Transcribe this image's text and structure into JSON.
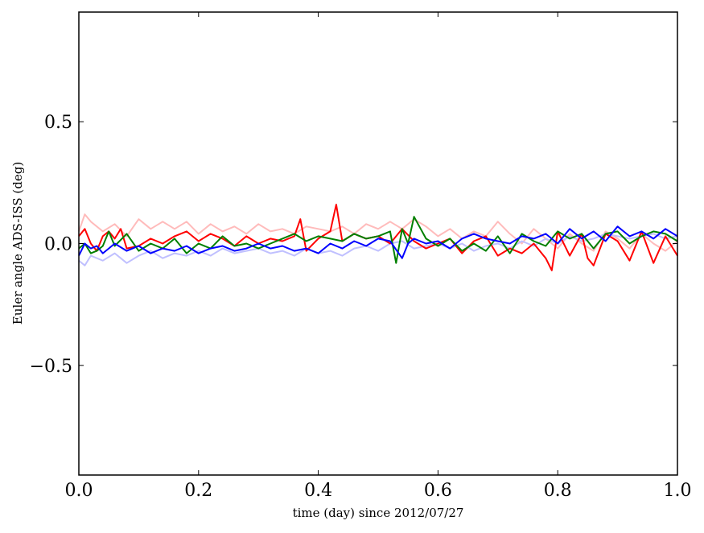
{
  "chart_data": {
    "type": "line",
    "title": "",
    "xlabel": "time (day) since 2012/07/27",
    "ylabel": "Euler angle ADS-ISS (deg)",
    "xlim": [
      0.0,
      1.0
    ],
    "ylim": [
      -0.95,
      0.95
    ],
    "xticks": [
      {
        "value": 0.0,
        "label": "0.0"
      },
      {
        "value": 0.2,
        "label": "0.2"
      },
      {
        "value": 0.4,
        "label": "0.4"
      },
      {
        "value": 0.6,
        "label": "0.6"
      },
      {
        "value": 0.8,
        "label": "0.8"
      },
      {
        "value": 1.0,
        "label": "1.0"
      }
    ],
    "yticks": [
      {
        "value": 0.5,
        "label": "0.5"
      },
      {
        "value": 0.0,
        "label": "0.0"
      },
      {
        "value": -0.5,
        "label": "−0.5"
      }
    ],
    "grid": false,
    "legend": "none",
    "series": [
      {
        "name": "pink",
        "color": "#ffbbbb",
        "x": [
          0.0,
          0.01,
          0.02,
          0.04,
          0.06,
          0.08,
          0.1,
          0.12,
          0.14,
          0.16,
          0.18,
          0.2,
          0.22,
          0.24,
          0.26,
          0.28,
          0.3,
          0.32,
          0.34,
          0.36,
          0.38,
          0.4,
          0.42,
          0.44,
          0.46,
          0.48,
          0.5,
          0.52,
          0.54,
          0.56,
          0.58,
          0.6,
          0.62,
          0.64,
          0.66,
          0.68,
          0.7,
          0.72,
          0.74,
          0.76,
          0.78,
          0.8,
          0.82,
          0.84,
          0.86,
          0.88,
          0.9,
          0.92,
          0.94,
          0.96,
          0.98,
          1.0
        ],
        "values": [
          0.05,
          0.12,
          0.09,
          0.05,
          0.08,
          0.03,
          0.1,
          0.06,
          0.09,
          0.06,
          0.09,
          0.04,
          0.08,
          0.05,
          0.07,
          0.04,
          0.08,
          0.05,
          0.06,
          0.04,
          0.07,
          0.06,
          0.05,
          0.07,
          0.04,
          0.08,
          0.06,
          0.09,
          0.06,
          0.1,
          0.07,
          0.03,
          0.06,
          0.02,
          0.05,
          0.03,
          0.09,
          0.04,
          0.0,
          0.06,
          0.02,
          -0.02,
          0.04,
          0.0,
          -0.03,
          0.05,
          0.02,
          -0.02,
          0.04,
          0.0,
          -0.03,
          0.01
        ]
      },
      {
        "name": "lightblue",
        "color": "#c0c0ff",
        "x": [
          0.0,
          0.01,
          0.02,
          0.04,
          0.06,
          0.08,
          0.1,
          0.12,
          0.14,
          0.16,
          0.18,
          0.2,
          0.22,
          0.24,
          0.26,
          0.28,
          0.3,
          0.32,
          0.34,
          0.36,
          0.38,
          0.4,
          0.42,
          0.44,
          0.46,
          0.48,
          0.5,
          0.52,
          0.54,
          0.56,
          0.58,
          0.6,
          0.62,
          0.64,
          0.66,
          0.68,
          0.7,
          0.72,
          0.74,
          0.76,
          0.78,
          0.8,
          0.82,
          0.84,
          0.86,
          0.88,
          0.9,
          0.92,
          0.94,
          0.96,
          0.98,
          1.0
        ],
        "values": [
          -0.07,
          -0.09,
          -0.05,
          -0.07,
          -0.04,
          -0.08,
          -0.05,
          -0.03,
          -0.06,
          -0.04,
          -0.05,
          -0.03,
          -0.05,
          -0.02,
          -0.04,
          -0.03,
          -0.02,
          -0.04,
          -0.03,
          -0.05,
          -0.02,
          -0.04,
          -0.03,
          -0.05,
          -0.02,
          -0.01,
          -0.03,
          0.0,
          0.01,
          -0.02,
          -0.01,
          0.0,
          -0.02,
          0.0,
          -0.03,
          -0.01,
          0.0,
          -0.02,
          0.01,
          -0.01,
          0.02,
          0.0,
          0.03,
          0.01,
          0.02,
          0.04,
          0.03,
          0.02,
          0.03,
          0.04,
          0.02,
          0.03
        ]
      },
      {
        "name": "red",
        "color": "#ff0000",
        "x": [
          0.0,
          0.01,
          0.02,
          0.03,
          0.04,
          0.05,
          0.06,
          0.07,
          0.08,
          0.1,
          0.12,
          0.14,
          0.16,
          0.18,
          0.2,
          0.22,
          0.24,
          0.26,
          0.28,
          0.3,
          0.32,
          0.34,
          0.36,
          0.37,
          0.38,
          0.4,
          0.42,
          0.43,
          0.44,
          0.46,
          0.48,
          0.5,
          0.52,
          0.54,
          0.56,
          0.58,
          0.6,
          0.62,
          0.64,
          0.66,
          0.68,
          0.7,
          0.72,
          0.74,
          0.76,
          0.78,
          0.79,
          0.8,
          0.82,
          0.84,
          0.85,
          0.86,
          0.88,
          0.9,
          0.92,
          0.94,
          0.96,
          0.98,
          1.0
        ],
        "values": [
          0.03,
          0.06,
          0.0,
          -0.03,
          0.03,
          0.05,
          0.02,
          0.06,
          -0.02,
          -0.01,
          0.02,
          0.0,
          0.03,
          0.05,
          0.01,
          0.04,
          0.02,
          -0.01,
          0.03,
          0.0,
          0.02,
          0.01,
          0.03,
          0.1,
          -0.03,
          0.02,
          0.05,
          0.16,
          0.01,
          0.04,
          0.02,
          0.03,
          0.0,
          0.06,
          0.01,
          -0.02,
          0.0,
          0.02,
          -0.04,
          0.01,
          0.03,
          -0.05,
          -0.02,
          -0.04,
          0.0,
          -0.06,
          -0.11,
          0.05,
          -0.05,
          0.04,
          -0.06,
          -0.09,
          0.04,
          0.01,
          -0.07,
          0.05,
          -0.08,
          0.03,
          -0.05
        ]
      },
      {
        "name": "green",
        "color": "#008000",
        "x": [
          0.0,
          0.01,
          0.02,
          0.03,
          0.04,
          0.05,
          0.06,
          0.08,
          0.1,
          0.12,
          0.14,
          0.16,
          0.18,
          0.2,
          0.22,
          0.24,
          0.26,
          0.28,
          0.3,
          0.32,
          0.34,
          0.36,
          0.38,
          0.4,
          0.42,
          0.44,
          0.46,
          0.48,
          0.5,
          0.52,
          0.53,
          0.54,
          0.55,
          0.56,
          0.58,
          0.6,
          0.62,
          0.64,
          0.66,
          0.68,
          0.7,
          0.72,
          0.74,
          0.76,
          0.78,
          0.8,
          0.82,
          0.84,
          0.86,
          0.88,
          0.9,
          0.92,
          0.94,
          0.96,
          0.98,
          1.0
        ],
        "values": [
          -0.02,
          0.0,
          -0.04,
          -0.03,
          -0.01,
          0.05,
          -0.01,
          0.04,
          -0.03,
          0.0,
          -0.02,
          0.02,
          -0.04,
          0.0,
          -0.02,
          0.03,
          -0.01,
          0.0,
          -0.02,
          0.0,
          0.02,
          0.04,
          0.01,
          0.03,
          0.02,
          0.01,
          0.04,
          0.02,
          0.03,
          0.05,
          -0.08,
          0.06,
          0.0,
          0.11,
          0.02,
          -0.01,
          0.02,
          -0.03,
          0.0,
          -0.03,
          0.03,
          -0.04,
          0.04,
          0.01,
          -0.01,
          0.05,
          0.02,
          0.04,
          -0.02,
          0.04,
          0.05,
          0.0,
          0.03,
          0.05,
          0.04,
          0.01
        ]
      },
      {
        "name": "blue",
        "color": "#0000ff",
        "x": [
          0.0,
          0.01,
          0.02,
          0.03,
          0.04,
          0.05,
          0.06,
          0.08,
          0.1,
          0.12,
          0.14,
          0.16,
          0.18,
          0.2,
          0.22,
          0.24,
          0.26,
          0.28,
          0.3,
          0.32,
          0.34,
          0.36,
          0.38,
          0.4,
          0.42,
          0.44,
          0.46,
          0.48,
          0.5,
          0.52,
          0.54,
          0.55,
          0.56,
          0.58,
          0.6,
          0.62,
          0.64,
          0.66,
          0.68,
          0.7,
          0.72,
          0.74,
          0.76,
          0.78,
          0.8,
          0.82,
          0.84,
          0.86,
          0.88,
          0.9,
          0.92,
          0.94,
          0.96,
          0.98,
          1.0
        ],
        "values": [
          -0.05,
          0.0,
          -0.02,
          -0.01,
          -0.04,
          -0.02,
          0.0,
          -0.03,
          -0.01,
          -0.04,
          -0.02,
          -0.03,
          -0.01,
          -0.04,
          -0.02,
          -0.01,
          -0.03,
          -0.02,
          0.0,
          -0.02,
          -0.01,
          -0.03,
          -0.02,
          -0.04,
          0.0,
          -0.02,
          0.01,
          -0.01,
          0.02,
          0.01,
          -0.06,
          0.0,
          0.02,
          0.0,
          0.01,
          -0.02,
          0.02,
          0.04,
          0.02,
          0.01,
          0.0,
          0.03,
          0.02,
          0.04,
          0.0,
          0.06,
          0.02,
          0.05,
          0.01,
          0.07,
          0.03,
          0.05,
          0.02,
          0.06,
          0.03
        ]
      }
    ]
  }
}
